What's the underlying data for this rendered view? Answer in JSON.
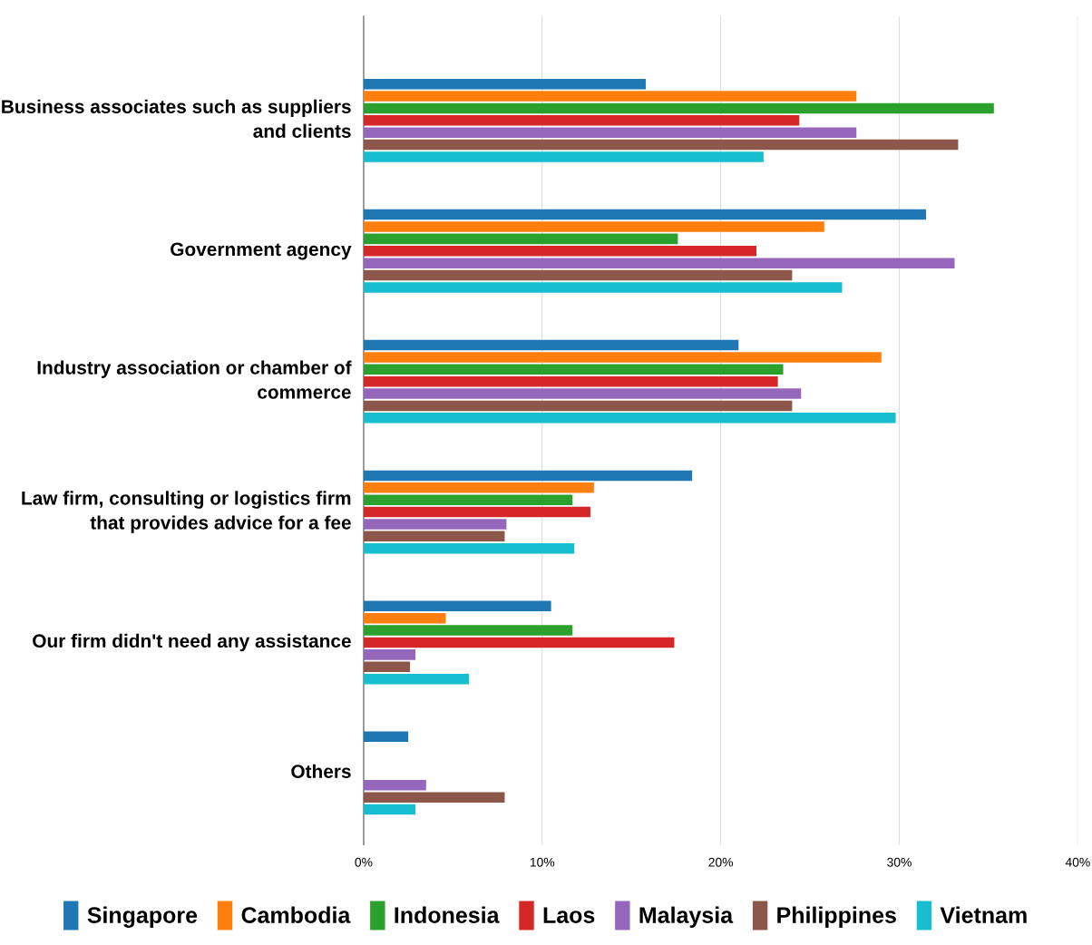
{
  "chart_data": {
    "type": "bar",
    "orientation": "horizontal",
    "categories": [
      "Business associates such as suppliers and clients",
      "Government agency",
      "Industry association or chamber of commerce",
      "Law firm, consulting or logistics firm that provides advice for a fee",
      "Our firm didn't need any assistance",
      "Others"
    ],
    "series": [
      {
        "name": "Singapore",
        "color": "#1f77b4",
        "values": [
          15.8,
          31.5,
          21.0,
          18.4,
          10.5,
          2.5
        ]
      },
      {
        "name": "Cambodia",
        "color": "#ff7f0e",
        "values": [
          27.6,
          25.8,
          29.0,
          12.9,
          4.6,
          0
        ]
      },
      {
        "name": "Indonesia",
        "color": "#2ca02c",
        "values": [
          35.3,
          17.6,
          23.5,
          11.7,
          11.7,
          0
        ]
      },
      {
        "name": "Laos",
        "color": "#d62728",
        "values": [
          24.4,
          22.0,
          23.2,
          12.7,
          17.4,
          0
        ]
      },
      {
        "name": "Malaysia",
        "color": "#9467bd",
        "values": [
          27.6,
          33.1,
          24.5,
          8.0,
          2.9,
          3.5
        ]
      },
      {
        "name": "Philippines",
        "color": "#8c564b",
        "values": [
          33.3,
          24.0,
          24.0,
          7.9,
          2.6,
          7.9
        ]
      },
      {
        "name": "Vietnam",
        "color": "#17becf",
        "values": [
          22.4,
          26.8,
          29.8,
          11.8,
          5.9,
          2.9
        ]
      }
    ],
    "xlim": [
      0,
      40
    ],
    "xticks": [
      {
        "value": 0,
        "label": "0%"
      },
      {
        "value": 10,
        "label": "10%"
      },
      {
        "value": 20,
        "label": "20%"
      },
      {
        "value": 30,
        "label": "30%"
      },
      {
        "value": 40,
        "label": "40%"
      }
    ],
    "grid": "x",
    "legend": "bottom"
  }
}
